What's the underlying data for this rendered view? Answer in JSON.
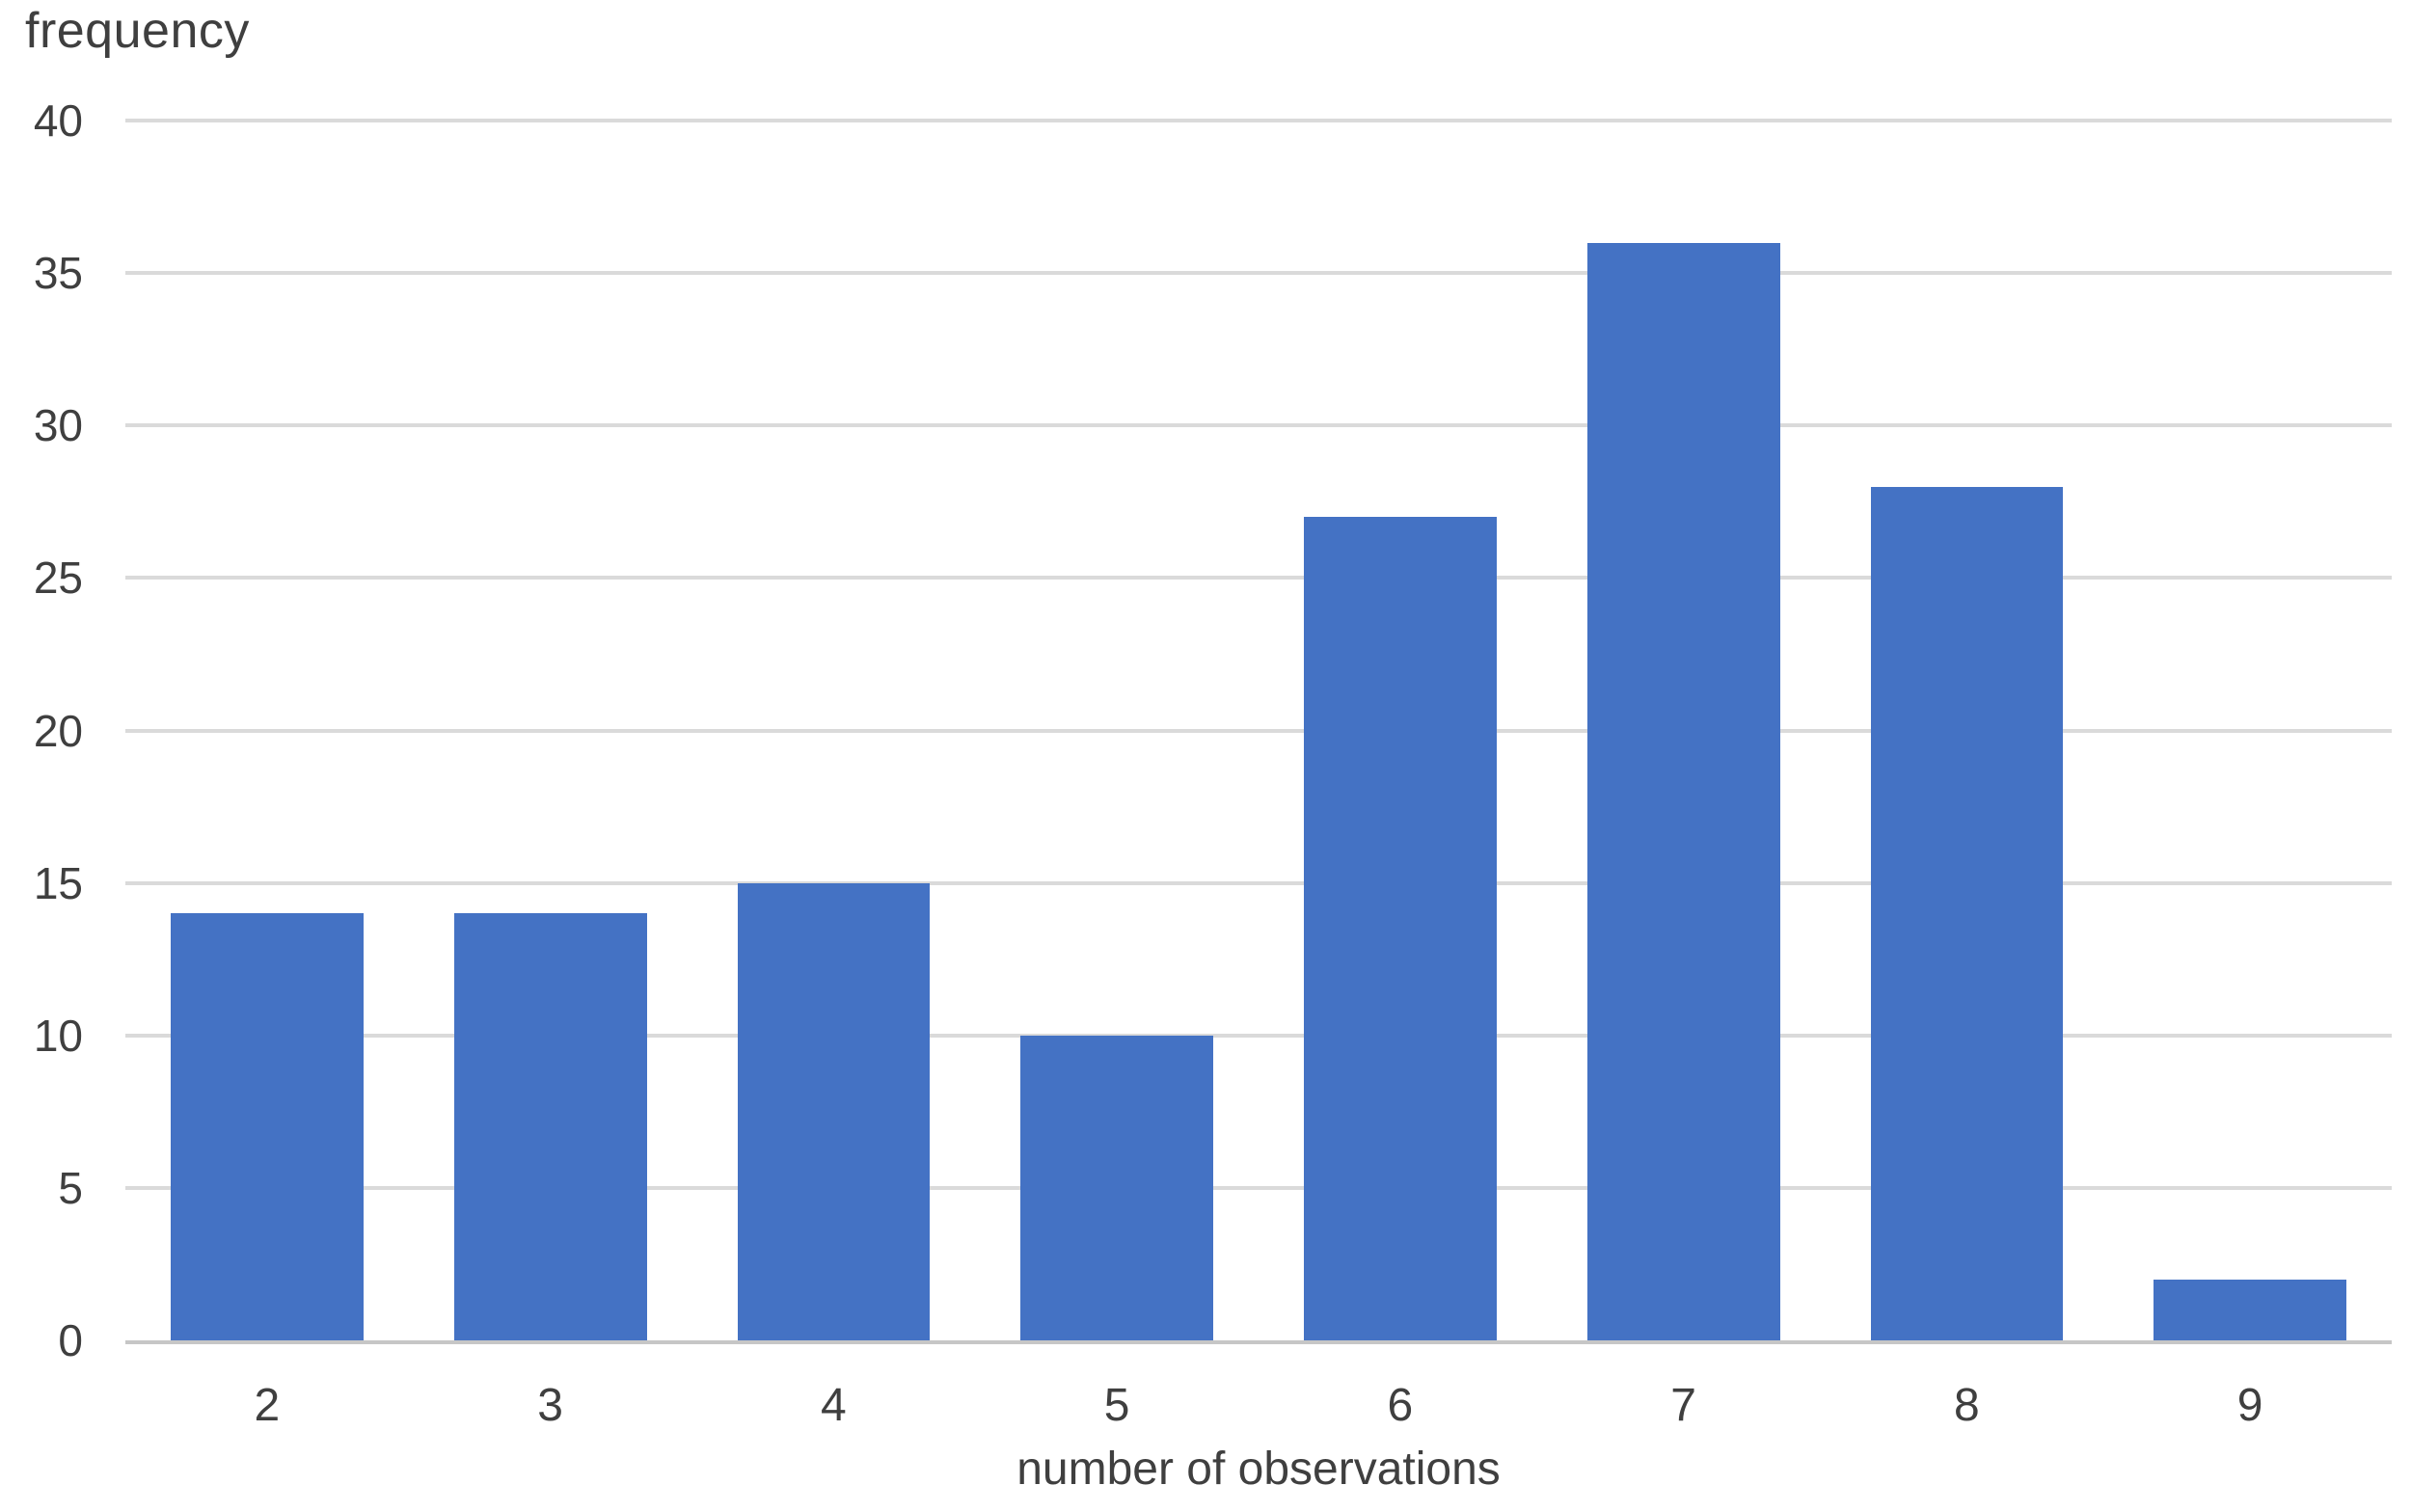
{
  "chart_data": {
    "type": "bar",
    "categories": [
      "2",
      "3",
      "4",
      "5",
      "6",
      "7",
      "8",
      "9"
    ],
    "values": [
      14,
      14,
      15,
      10,
      27,
      36,
      28,
      2
    ],
    "title": "",
    "xlabel": "number of observations",
    "ylabel": "frequency",
    "ylim": [
      0,
      40
    ],
    "yticks": [
      0,
      5,
      10,
      15,
      20,
      25,
      30,
      35,
      40
    ],
    "grid": true,
    "legend": "none",
    "bar_color": "#4472C4",
    "gridline_color": "#DADADA",
    "axis_line_color": "#C6C6C6",
    "text_color": "#3F3F3F"
  }
}
